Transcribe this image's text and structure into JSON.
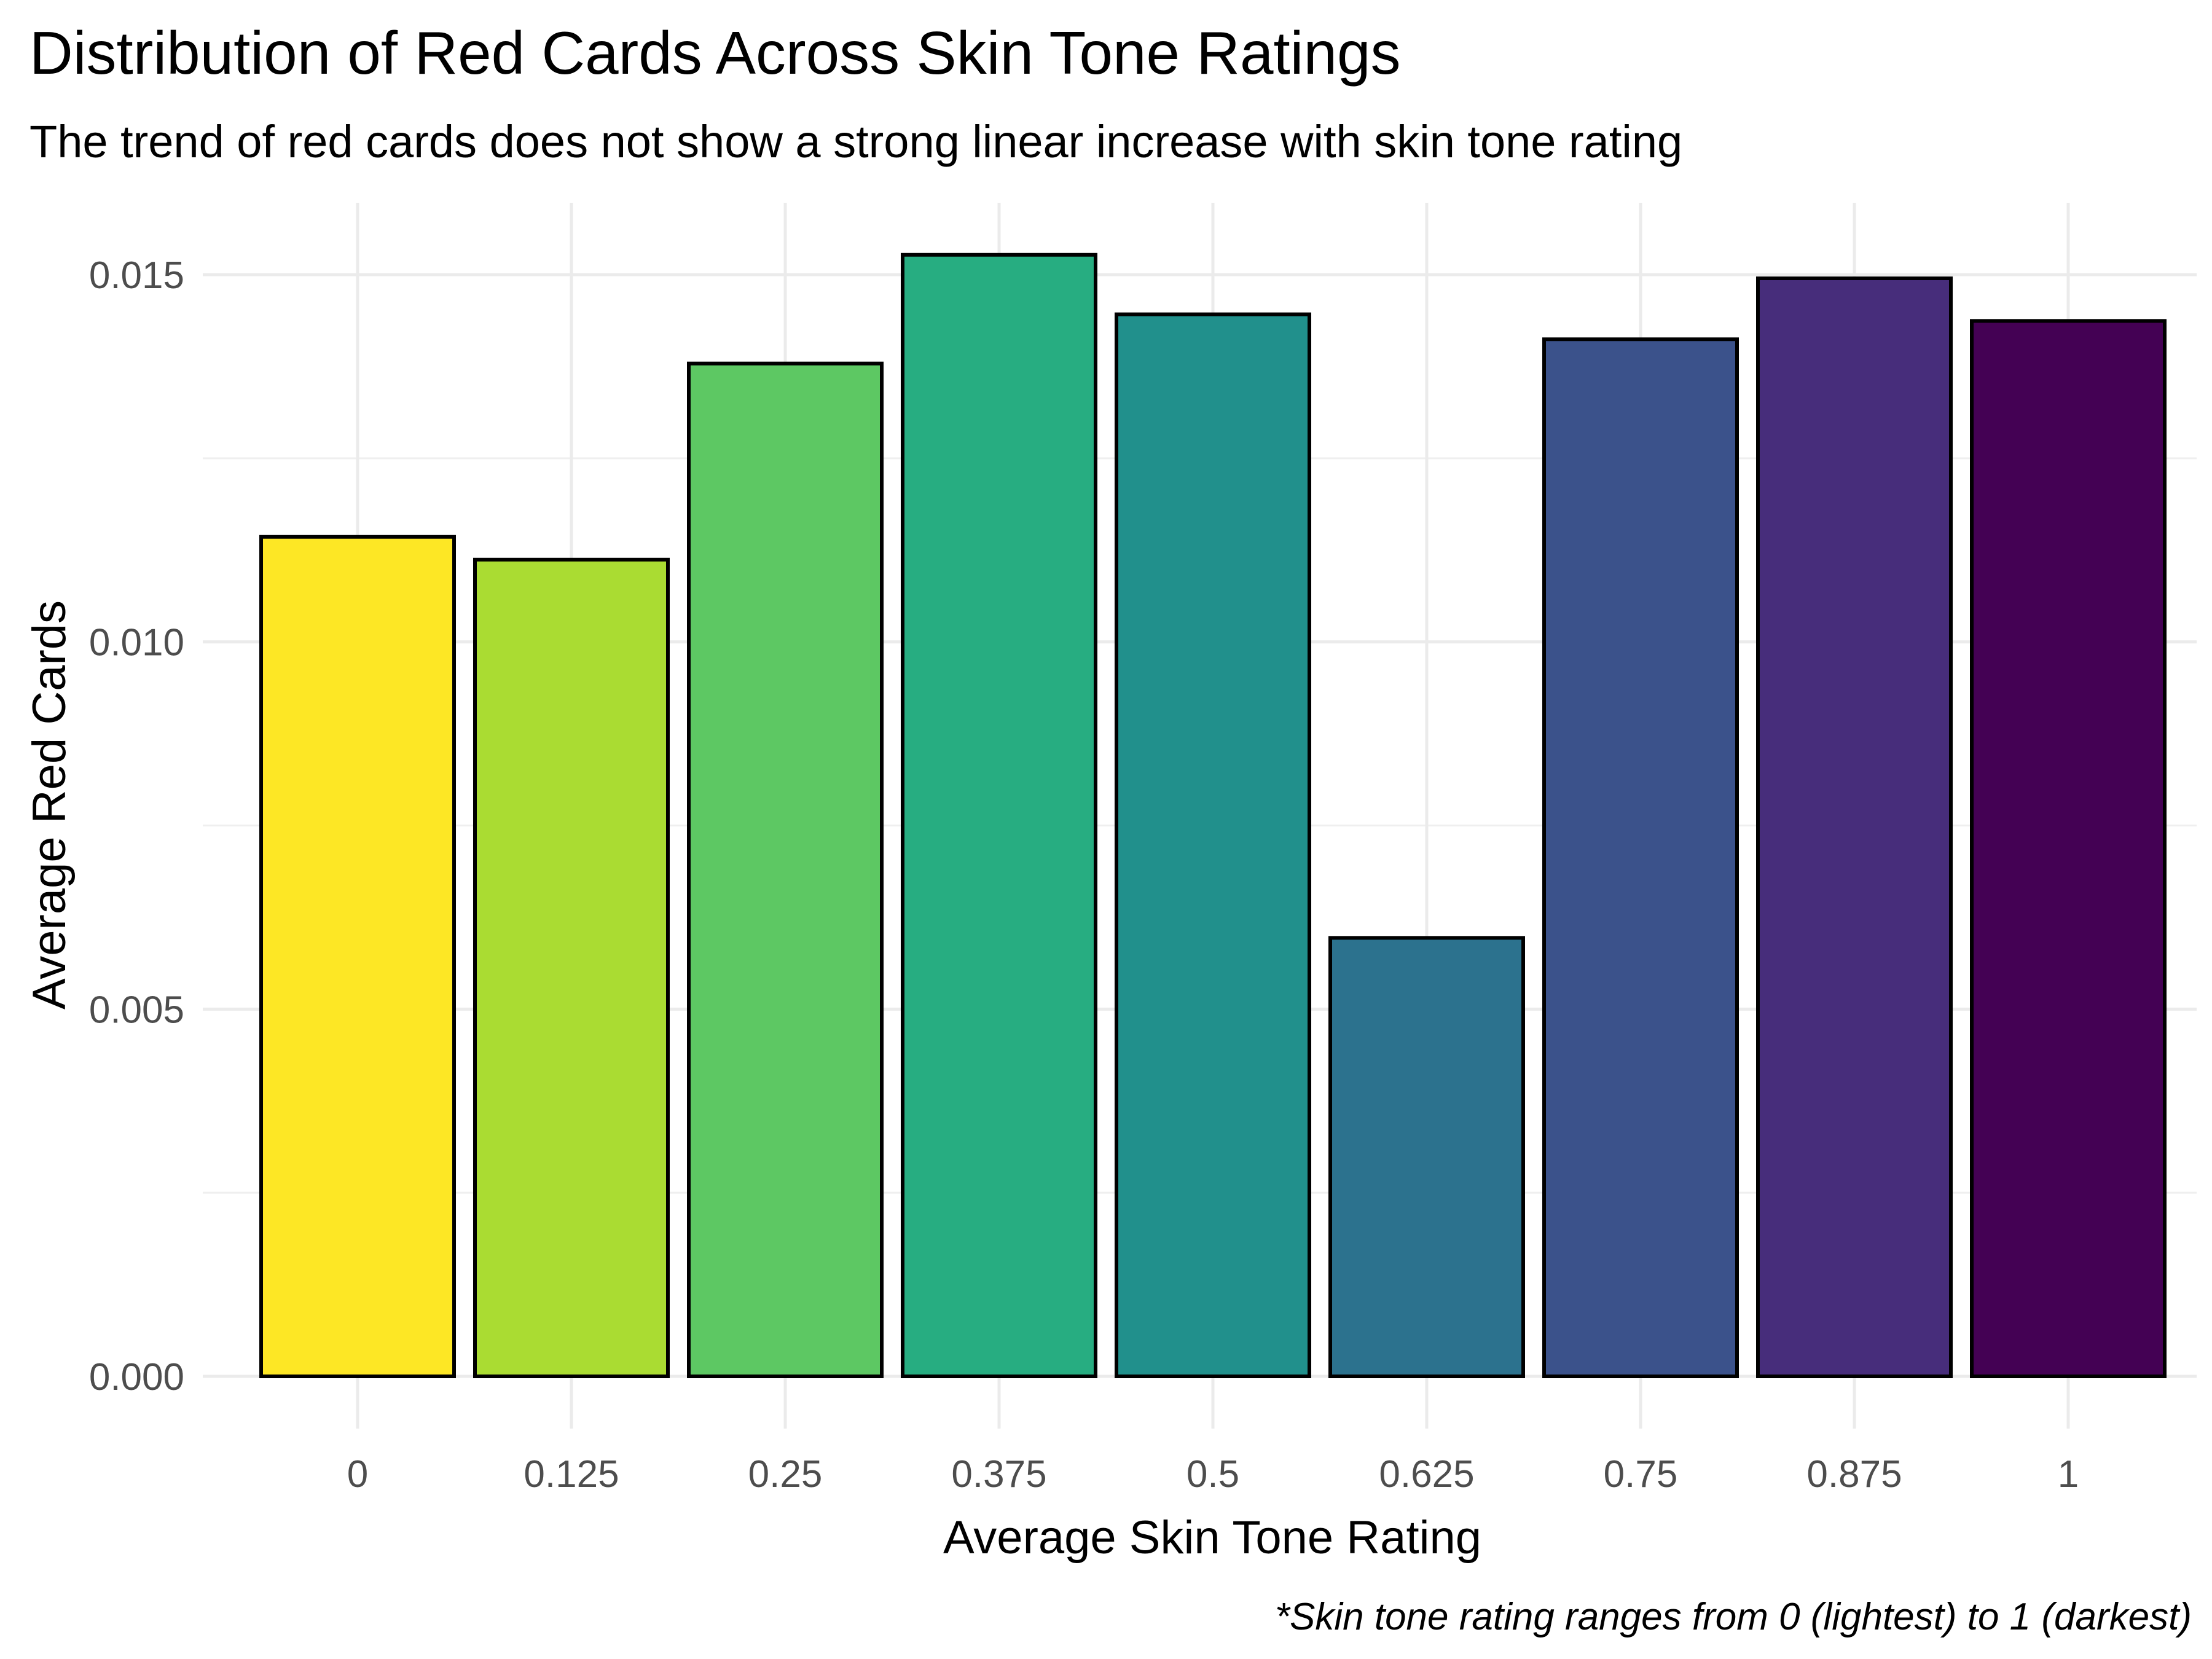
{
  "chart_data": {
    "type": "bar",
    "title": "Distribution of Red Cards Across Skin Tone Ratings",
    "subtitle": "The trend of red cards does not show a strong linear increase with skin tone rating",
    "caption": "*Skin tone rating ranges from 0 (lightest) to 1 (darkest)",
    "xlabel": "Average Skin Tone Rating",
    "ylabel": "Average Red Cards",
    "categories": [
      "0",
      "0.125",
      "0.25",
      "0.375",
      "0.5",
      "0.625",
      "0.75",
      "0.875",
      "1"
    ],
    "values": [
      0.01143,
      0.01112,
      0.01379,
      0.01527,
      0.01446,
      0.00597,
      0.01412,
      0.01495,
      0.01437
    ],
    "colors": [
      "#FDE725",
      "#AADC32",
      "#5DC863",
      "#27AD81",
      "#21908C",
      "#2C728E",
      "#3B528B",
      "#472D7B",
      "#440154"
    ],
    "bar_outline": "#000000",
    "ylim": [
      0,
      0.016
    ],
    "yticks": [
      0.0,
      0.005,
      0.01,
      0.015
    ],
    "ytick_labels": [
      "0.000",
      "0.005",
      "0.010",
      "0.015"
    ],
    "grid": true,
    "legend": "none"
  }
}
